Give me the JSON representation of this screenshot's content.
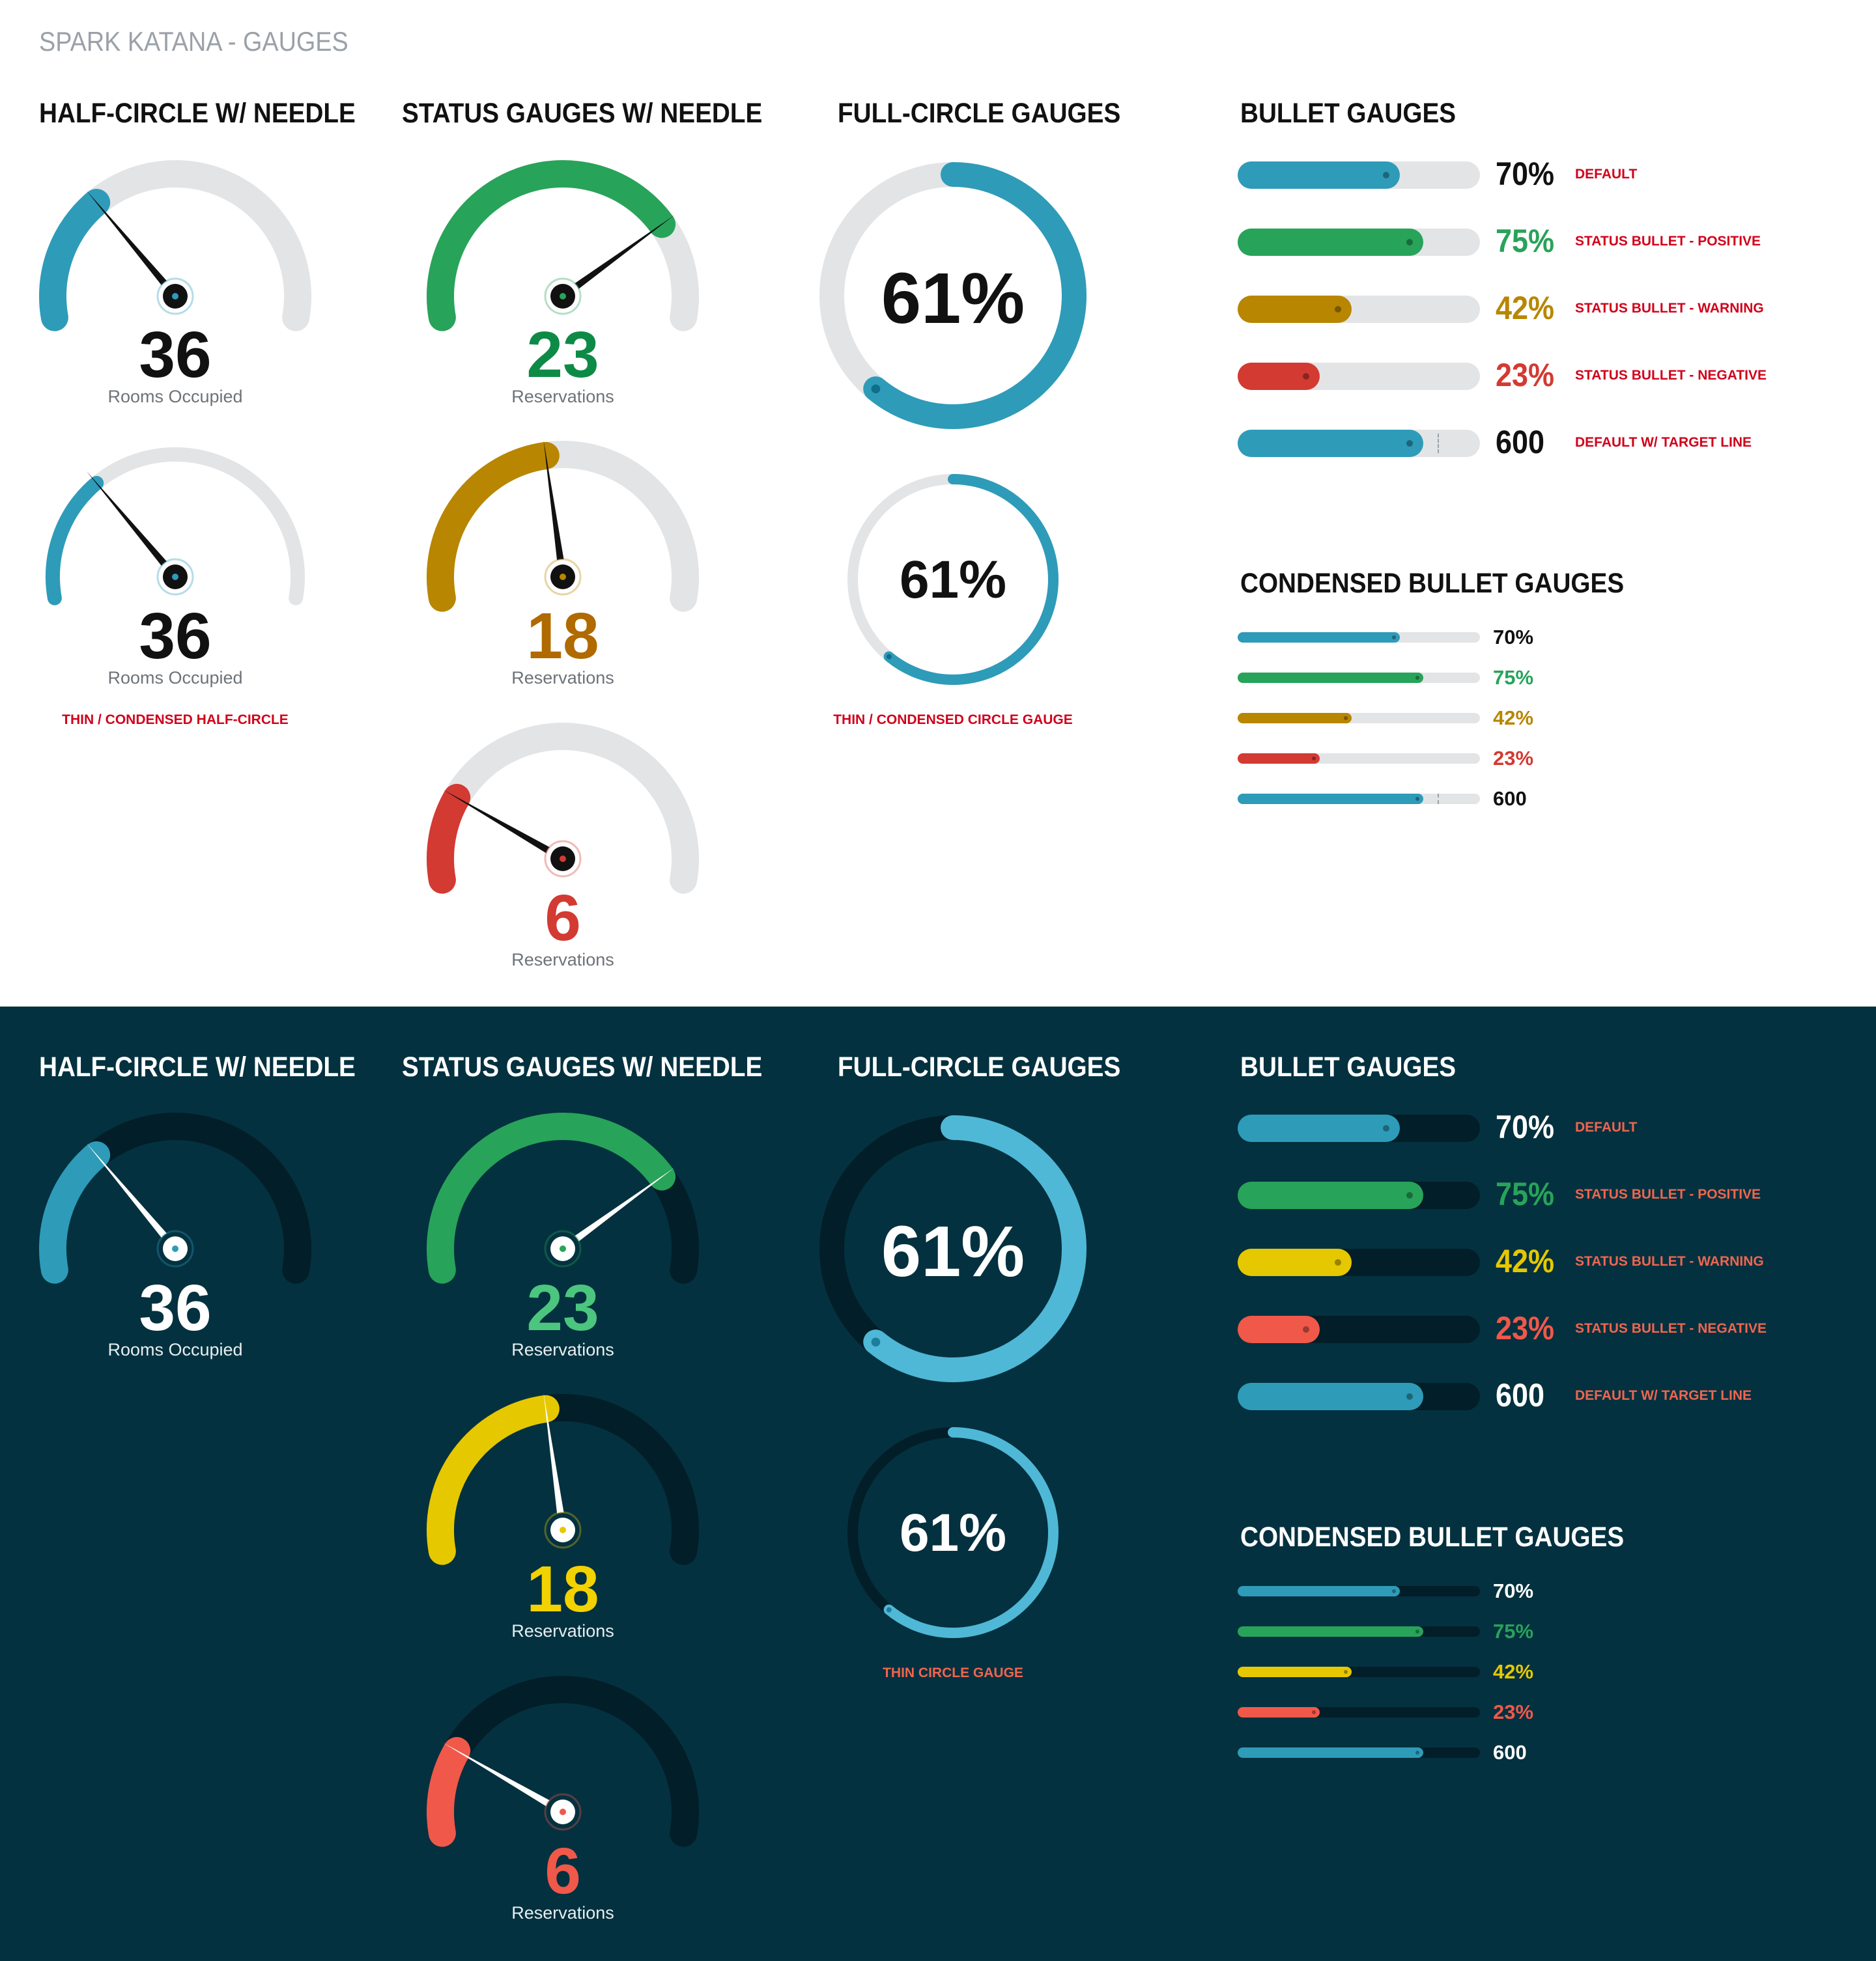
{
  "page_title": "SPARK KATANA - GAUGES",
  "colors": {
    "light_bg": "#ffffff",
    "dark_bg": "#04313f",
    "default_blue": "#2e9bb9",
    "positive_green": "#28a35a",
    "warning_light": "#b88600",
    "warning_dark": "#e6c800",
    "negative_light": "#d33a32",
    "negative_dark": "#f0584a",
    "note_red_light": "#d0021b",
    "note_red_dark": "#f0654f"
  },
  "light": {
    "half_circle_title": "HALF-CIRCLE W/ NEEDLE",
    "status_title": "STATUS GAUGES W/ NEEDLE",
    "full_circle_title": "FULL-CIRCLE GAUGES",
    "bullet_title": "BULLET GAUGES",
    "condensed_title": "CONDENSED BULLET GAUGES",
    "half_gauges": [
      {
        "value": "36",
        "label": "Rooms Occupied",
        "fraction": 0.3
      },
      {
        "value": "36",
        "label": "Rooms Occupied",
        "fraction": 0.3
      }
    ],
    "half_note": "THIN / CONDENSED HALF-CIRCLE",
    "status_gauges": [
      {
        "value": "23",
        "label": "Reservations",
        "status": "positive",
        "fraction": 0.77
      },
      {
        "value": "18",
        "label": "Reservations",
        "status": "warning",
        "fraction": 0.46
      },
      {
        "value": "6",
        "label": "Reservations",
        "status": "negative",
        "fraction": 0.2
      }
    ],
    "circles": [
      {
        "value": "61%",
        "fraction": 0.61
      },
      {
        "value": "61%",
        "fraction": 0.61
      }
    ],
    "circle_note": "THIN / CONDENSED CIRCLE GAUGE",
    "bullets": [
      {
        "value": "70%",
        "label": "DEFAULT",
        "status": "default",
        "fraction": 0.67
      },
      {
        "value": "75%",
        "label": "STATUS BULLET - POSITIVE",
        "status": "positive",
        "fraction": 0.765
      },
      {
        "value": "42%",
        "label": "STATUS BULLET - WARNING",
        "status": "warning",
        "fraction": 0.47
      },
      {
        "value": "23%",
        "label": "STATUS BULLET - NEGATIVE",
        "status": "negative",
        "fraction": 0.34
      },
      {
        "value": "600",
        "label": "DEFAULT W/ TARGET LINE",
        "status": "default",
        "fraction": 0.765,
        "target": 0.825
      }
    ],
    "condensed": [
      {
        "value": "70%",
        "status": "default",
        "fraction": 0.67
      },
      {
        "value": "75%",
        "status": "positive",
        "fraction": 0.765
      },
      {
        "value": "42%",
        "status": "warning",
        "fraction": 0.47
      },
      {
        "value": "23%",
        "status": "negative",
        "fraction": 0.34
      },
      {
        "value": "600",
        "status": "default",
        "fraction": 0.765,
        "target": 0.825
      }
    ]
  },
  "dark": {
    "half_circle_title": "HALF-CIRCLE W/ NEEDLE",
    "status_title": "STATUS GAUGES W/ NEEDLE",
    "full_circle_title": "FULL-CIRCLE GAUGES",
    "bullet_title": "BULLET GAUGES",
    "condensed_title": "CONDENSED BULLET GAUGES",
    "half_gauges": [
      {
        "value": "36",
        "label": "Rooms Occupied",
        "fraction": 0.3
      }
    ],
    "status_gauges": [
      {
        "value": "23",
        "label": "Reservations",
        "status": "positive",
        "fraction": 0.77
      },
      {
        "value": "18",
        "label": "Reservations",
        "status": "warning",
        "fraction": 0.46
      },
      {
        "value": "6",
        "label": "Reservations",
        "status": "negative",
        "fraction": 0.2
      }
    ],
    "circles": [
      {
        "value": "61%",
        "fraction": 0.61
      },
      {
        "value": "61%",
        "fraction": 0.61
      }
    ],
    "circle_note": "THIN CIRCLE GAUGE",
    "bullets": [
      {
        "value": "70%",
        "label": "DEFAULT",
        "status": "default",
        "fraction": 0.67
      },
      {
        "value": "75%",
        "label": "STATUS BULLET - POSITIVE",
        "status": "positive",
        "fraction": 0.765
      },
      {
        "value": "42%",
        "label": "STATUS BULLET - WARNING",
        "status": "warning",
        "fraction": 0.47
      },
      {
        "value": "23%",
        "label": "STATUS BULLET - NEGATIVE",
        "status": "negative",
        "fraction": 0.34
      },
      {
        "value": "600",
        "label": "DEFAULT W/ TARGET LINE",
        "status": "default",
        "fraction": 0.765,
        "target": 0.825
      }
    ],
    "condensed": [
      {
        "value": "70%",
        "status": "default",
        "fraction": 0.67
      },
      {
        "value": "75%",
        "status": "positive",
        "fraction": 0.765
      },
      {
        "value": "42%",
        "status": "warning",
        "fraction": 0.47
      },
      {
        "value": "23%",
        "status": "negative",
        "fraction": 0.34
      },
      {
        "value": "600",
        "status": "default",
        "fraction": 0.765,
        "target": 0.825
      }
    ]
  }
}
